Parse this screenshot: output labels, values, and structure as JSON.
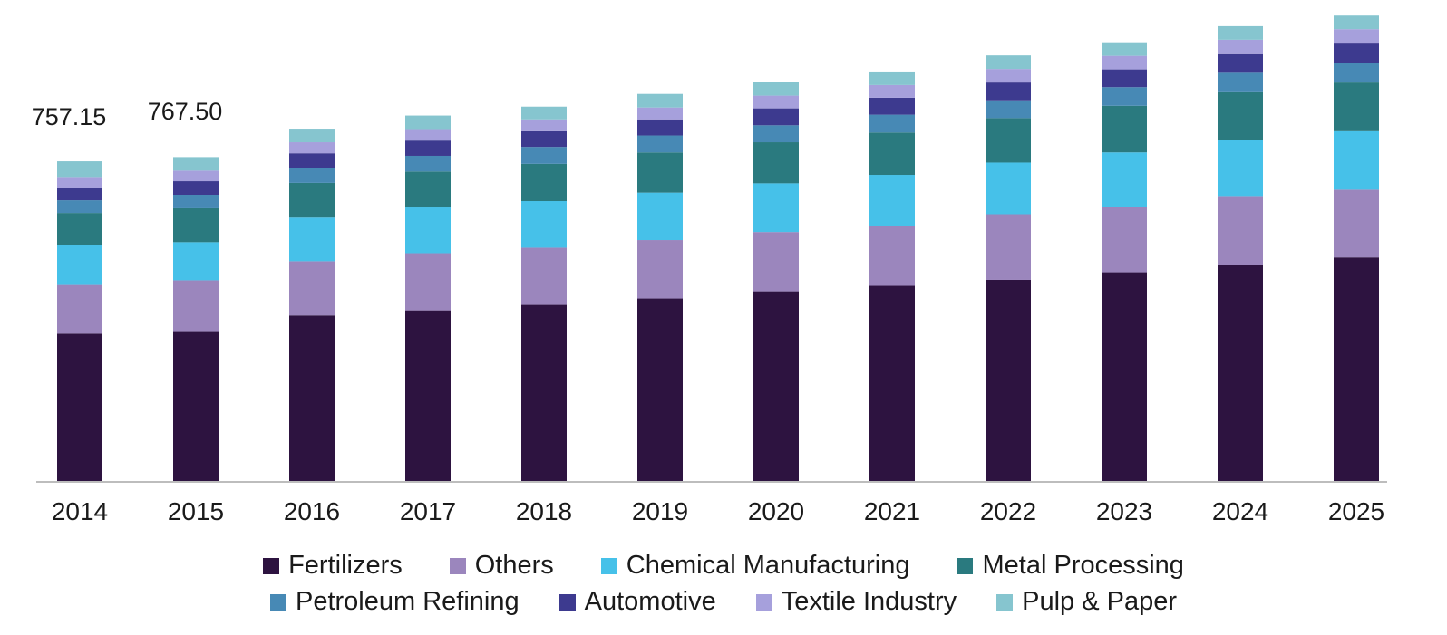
{
  "chart_data": {
    "type": "bar",
    "stacked": true,
    "categories": [
      "2014",
      "2015",
      "2016",
      "2017",
      "2018",
      "2019",
      "2020",
      "2021",
      "2022",
      "2023",
      "2024",
      "2025"
    ],
    "data_labels": [
      {
        "category": "2014",
        "text": "757.15"
      },
      {
        "category": "2015",
        "text": "767.50"
      }
    ],
    "ylim": [
      0,
      1125
    ],
    "grid": false,
    "legend_position": "bottom",
    "series": [
      {
        "name": "Fertilizers",
        "color": "#2d1340",
        "values": [
          350,
          356,
          393,
          405,
          418,
          433,
          450,
          463,
          477,
          495,
          513,
          530
        ]
      },
      {
        "name": "Others",
        "color": "#9b86bd",
        "values": [
          115,
          120,
          128,
          135,
          135,
          138,
          140,
          142,
          155,
          155,
          162,
          160
        ]
      },
      {
        "name": "Chemical Manufacturing",
        "color": "#46c1e9",
        "values": [
          95,
          90,
          103,
          108,
          110,
          112,
          115,
          120,
          122,
          128,
          133,
          138
        ]
      },
      {
        "name": "Metal Processing",
        "color": "#2a7a7f",
        "values": [
          75,
          80,
          82,
          85,
          88,
          95,
          97,
          100,
          105,
          110,
          112,
          115
        ]
      },
      {
        "name": "Petroleum Refining",
        "color": "#4789b5",
        "values": [
          30,
          32,
          35,
          37,
          40,
          40,
          40,
          42,
          42,
          44,
          46,
          46
        ]
      },
      {
        "name": "Automotive",
        "color": "#3d3a8f",
        "values": [
          30,
          32,
          35,
          36,
          37,
          38,
          40,
          40,
          42,
          42,
          44,
          46
        ]
      },
      {
        "name": "Textile Industry",
        "color": "#a6a0dc",
        "values": [
          25,
          25,
          26,
          27,
          28,
          28,
          30,
          30,
          32,
          32,
          34,
          34
        ]
      },
      {
        "name": "Pulp & Paper",
        "color": "#86c5cf",
        "values": [
          37,
          32,
          32,
          32,
          30,
          32,
          32,
          32,
          32,
          32,
          32,
          32
        ]
      }
    ]
  }
}
